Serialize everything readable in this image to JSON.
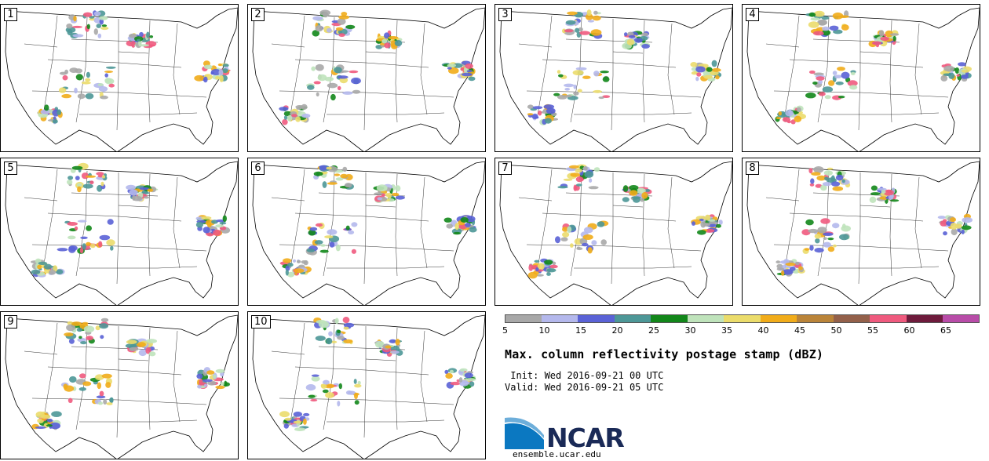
{
  "panels": [
    {
      "id": "1"
    },
    {
      "id": "2"
    },
    {
      "id": "3"
    },
    {
      "id": "4"
    },
    {
      "id": "5"
    },
    {
      "id": "6"
    },
    {
      "id": "7"
    },
    {
      "id": "8"
    },
    {
      "id": "9"
    },
    {
      "id": "10"
    }
  ],
  "colorbar": {
    "colors": [
      "#a8a8a8",
      "#b4b8ec",
      "#5a62d6",
      "#4d9797",
      "#12871a",
      "#bfe3bb",
      "#ebdc6b",
      "#f1ac1a",
      "#ba8439",
      "#93604a",
      "#ef5a7e",
      "#6e1b3c",
      "#b84ca8"
    ],
    "ticks": [
      "5",
      "10",
      "15",
      "20",
      "25",
      "30",
      "35",
      "40",
      "45",
      "50",
      "55",
      "60",
      "65"
    ]
  },
  "title": "Max. column reflectivity postage stamp (dBZ)",
  "init_line": " Init: Wed 2016-09-21 00 UTC",
  "valid_line": "Valid: Wed 2016-09-21 05 UTC",
  "logo": {
    "name": "NCAR",
    "url": "ensemble.ucar.edu"
  }
}
